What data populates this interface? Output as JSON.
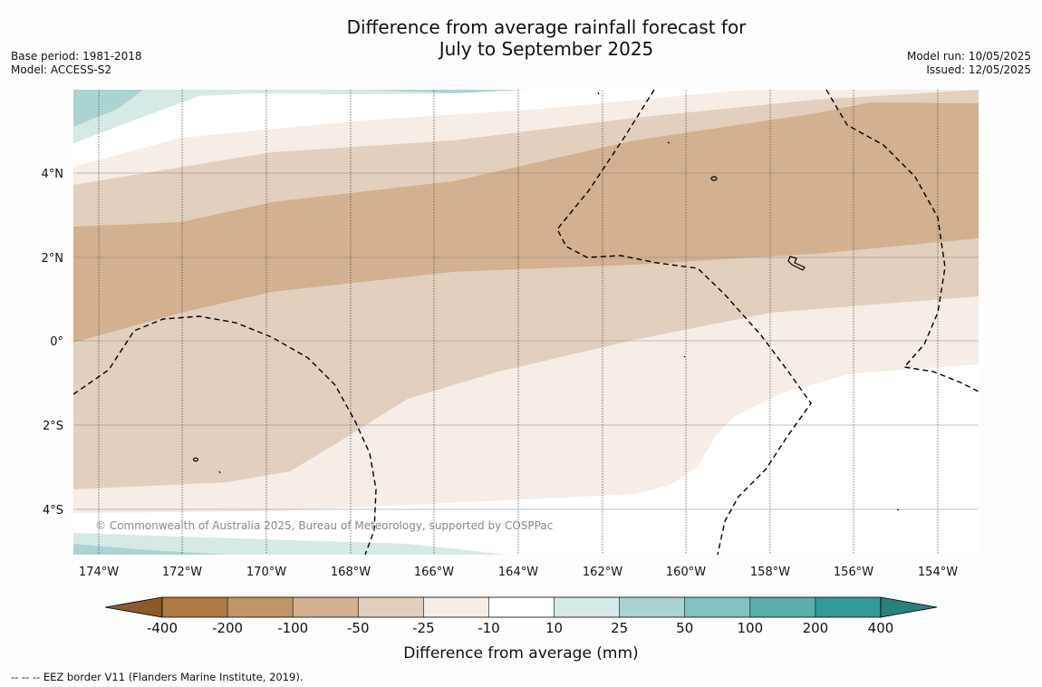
{
  "title_line1": "Difference from average rainfall forecast for",
  "title_line2": "July to September 2025",
  "meta_left": [
    "Base period: 1981-2018",
    "Model: ACCESS-S2"
  ],
  "meta_right": [
    "Model run: 10/05/2025",
    "Issued: 12/05/2025"
  ],
  "copyright": "© Commonwealth of Australia 2025, Bureau of Meteorology, supported by COSPPac",
  "footnote": "-- -- -- EEZ border V11 (Flanders Marine Institute, 2019).",
  "map": {
    "lat_labels": [
      "4°N",
      "2°N",
      "0°",
      "2°S",
      "4°S"
    ],
    "lon_labels": [
      "174°W",
      "172°W",
      "170°W",
      "168°W",
      "166°W",
      "164°W",
      "162°W",
      "160°W",
      "158°W",
      "156°W",
      "154°W"
    ]
  },
  "legend": {
    "label": "Difference from average (mm)",
    "ticks": [
      "-400",
      "-200",
      "-100",
      "-50",
      "-25",
      "-10",
      "10",
      "25",
      "50",
      "100",
      "200",
      "400"
    ],
    "colors": [
      "#8b5a2b",
      "#b07a45",
      "#c29569",
      "#d2b090",
      "#e3cfbd",
      "#f5ede6",
      "#ffffff",
      "#d5e9e7",
      "#abd3d2",
      "#82c1bf",
      "#5aaeac",
      "#339a98",
      "#2a807e"
    ]
  }
}
